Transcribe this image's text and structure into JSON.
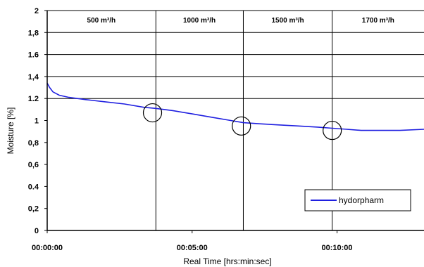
{
  "chart_data": {
    "type": "line",
    "xlabel": "Real Time [hrs:min:sec]",
    "ylabel": "Moisture [%]",
    "xlim_seconds": [
      0,
      780
    ],
    "ylim": [
      0,
      2
    ],
    "y_ticks": [
      {
        "value": 0,
        "label": "0"
      },
      {
        "value": 0.2,
        "label": "0,2"
      },
      {
        "value": 0.4,
        "label": "0.4"
      },
      {
        "value": 0.6,
        "label": "0,6"
      },
      {
        "value": 0.8,
        "label": "0,8"
      },
      {
        "value": 1.0,
        "label": "1"
      },
      {
        "value": 1.2,
        "label": "1.2"
      },
      {
        "value": 1.4,
        "label": "1,4"
      },
      {
        "value": 1.6,
        "label": "1.6"
      },
      {
        "value": 1.8,
        "label": "1,8"
      },
      {
        "value": 2.0,
        "label": "2"
      }
    ],
    "x_ticks": [
      {
        "seconds": 0,
        "label": "00:00:00"
      },
      {
        "seconds": 300,
        "label": "00:05:00"
      },
      {
        "seconds": 600,
        "label": "00:10:00"
      }
    ],
    "horizontal_gridlines": [
      1.2,
      1.4,
      1.6,
      1.8,
      2.0
    ],
    "phase_boundaries_seconds": [
      225,
      406,
      590
    ],
    "phase_labels": [
      {
        "label": "500 m³/h",
        "center_seconds": 112
      },
      {
        "label": "1000 m³/h",
        "center_seconds": 315
      },
      {
        "label": "1500 m³/h",
        "center_seconds": 498
      },
      {
        "label": "1700 m³/h",
        "center_seconds": 685
      }
    ],
    "annotation_circles": [
      {
        "seconds": 218,
        "value": 1.07
      },
      {
        "seconds": 402,
        "value": 0.95
      },
      {
        "seconds": 590,
        "value": 0.91
      }
    ],
    "series": [
      {
        "name": "hydorpharm",
        "color": "#1f1fe0",
        "x_seconds": [
          0,
          5,
          12,
          25,
          45,
          80,
          120,
          160,
          200,
          225,
          260,
          300,
          340,
          380,
          406,
          440,
          480,
          520,
          560,
          590,
          620,
          650,
          690,
          730,
          780
        ],
        "values": [
          1.34,
          1.3,
          1.26,
          1.23,
          1.21,
          1.19,
          1.17,
          1.15,
          1.12,
          1.11,
          1.09,
          1.06,
          1.03,
          1.0,
          0.98,
          0.97,
          0.96,
          0.95,
          0.94,
          0.93,
          0.92,
          0.91,
          0.91,
          0.91,
          0.92
        ]
      }
    ],
    "legend": {
      "position": "bottom-right"
    }
  }
}
